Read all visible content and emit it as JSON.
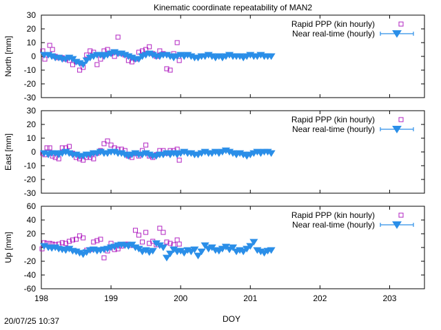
{
  "figure": {
    "title": "Kinematic coordinate repeatability of MAN2",
    "xlabel": "DOY",
    "timestamp": "20/07/25 10:37"
  },
  "colors": {
    "rapid_ppp": "#b020c0",
    "near_realtime": "#2a8ee8",
    "axis": "#000000"
  },
  "chart_data": [
    {
      "type": "scatter",
      "panel": "north",
      "ylabel": "North [mm]",
      "xlim": [
        198,
        203.5
      ],
      "ylim": [
        -30,
        30
      ],
      "xticks": [
        198,
        199,
        200,
        201,
        202,
        203
      ],
      "yticks": [
        -30,
        -20,
        -10,
        0,
        10,
        20,
        30
      ],
      "legend_position": "top-right",
      "series": [
        {
          "name": "Rapid PPP (kin hourly)",
          "marker": "open-square",
          "x": [
            198.02,
            198.05,
            198.08,
            198.12,
            198.16,
            198.2,
            198.25,
            198.3,
            198.35,
            198.4,
            198.45,
            198.5,
            198.55,
            198.6,
            198.65,
            198.7,
            198.75,
            198.8,
            198.85,
            198.9,
            198.95,
            199.0,
            199.05,
            199.1,
            199.15,
            199.2,
            199.25,
            199.3,
            199.35,
            199.4,
            199.45,
            199.5,
            199.55,
            199.6,
            199.65,
            199.7,
            199.75,
            199.8,
            199.85,
            199.9,
            199.95,
            199.98
          ],
          "y": [
            4,
            -2,
            1,
            8,
            5,
            0,
            -1,
            -1,
            -2,
            -3,
            -6,
            -4,
            -10,
            -8,
            1,
            4,
            3,
            -6,
            -2,
            4,
            5,
            2,
            0,
            14,
            2,
            1,
            -3,
            -4,
            -2,
            3,
            4,
            5,
            7,
            2,
            0,
            4,
            2,
            -9,
            -10,
            2,
            10,
            -3
          ]
        },
        {
          "name": "Near real-time (hourly)",
          "marker": "filled-triangle-down-errorbar",
          "x": [
            198.04,
            198.1,
            198.15,
            198.2,
            198.25,
            198.3,
            198.35,
            198.4,
            198.45,
            198.5,
            198.55,
            198.6,
            198.65,
            198.7,
            198.75,
            198.8,
            198.85,
            198.9,
            198.95,
            199.0,
            199.05,
            199.1,
            199.15,
            199.2,
            199.25,
            199.3,
            199.35,
            199.4,
            199.45,
            199.5,
            199.55,
            199.6,
            199.65,
            199.7,
            199.75,
            199.8,
            199.85,
            199.9,
            199.95,
            200.0,
            200.05,
            200.1,
            200.15,
            200.2,
            200.25,
            200.3,
            200.35,
            200.4,
            200.45,
            200.5,
            200.55,
            200.6,
            200.65,
            200.7,
            200.75,
            200.8,
            200.85,
            200.9,
            200.95,
            201.0,
            201.05,
            201.1,
            201.15,
            201.2,
            201.25,
            201.3
          ],
          "y": [
            1,
            1,
            0,
            -1,
            -1,
            -2,
            -2,
            -1,
            -2,
            -4,
            -5,
            -6,
            -3,
            -1,
            0,
            1,
            1,
            0,
            1,
            2,
            3,
            2,
            2,
            1,
            0,
            -1,
            -2,
            -2,
            0,
            1,
            2,
            1,
            0,
            0,
            1,
            1,
            0,
            -1,
            0,
            1,
            0,
            1,
            0,
            -1,
            -1,
            0,
            0,
            1,
            0,
            -1,
            0,
            -1,
            0,
            1,
            0,
            0,
            0,
            -1,
            0,
            1,
            0,
            0,
            1,
            0,
            0,
            0
          ]
        }
      ]
    },
    {
      "type": "scatter",
      "panel": "east",
      "ylabel": "East [mm]",
      "xlim": [
        198,
        203.5
      ],
      "ylim": [
        -30,
        30
      ],
      "xticks": [
        198,
        199,
        200,
        201,
        202,
        203
      ],
      "yticks": [
        -30,
        -20,
        -10,
        0,
        10,
        20,
        30
      ],
      "legend_position": "top-right",
      "series": [
        {
          "name": "Rapid PPP (kin hourly)",
          "marker": "open-square",
          "x": [
            198.02,
            198.05,
            198.08,
            198.12,
            198.16,
            198.2,
            198.25,
            198.3,
            198.35,
            198.4,
            198.45,
            198.5,
            198.55,
            198.6,
            198.65,
            198.7,
            198.75,
            198.8,
            198.85,
            198.9,
            198.95,
            199.0,
            199.05,
            199.1,
            199.15,
            199.2,
            199.25,
            199.3,
            199.35,
            199.4,
            199.45,
            199.5,
            199.55,
            199.6,
            199.65,
            199.7,
            199.75,
            199.8,
            199.85,
            199.9,
            199.95,
            199.98
          ],
          "y": [
            -1,
            -2,
            3,
            3,
            -3,
            -4,
            -5,
            3,
            3,
            4,
            -1,
            -4,
            -5,
            -6,
            -4,
            -4,
            -5,
            -1,
            1,
            6,
            8,
            5,
            3,
            2,
            2,
            1,
            -3,
            -4,
            -1,
            -3,
            1,
            5,
            -3,
            -4,
            -2,
            1,
            1,
            -1,
            1,
            1,
            2,
            -6
          ]
        },
        {
          "name": "Near real-time (hourly)",
          "marker": "filled-triangle-down-errorbar",
          "x": [
            198.04,
            198.1,
            198.15,
            198.2,
            198.25,
            198.3,
            198.35,
            198.4,
            198.45,
            198.5,
            198.55,
            198.6,
            198.65,
            198.7,
            198.75,
            198.8,
            198.85,
            198.9,
            198.95,
            199.0,
            199.05,
            199.1,
            199.15,
            199.2,
            199.25,
            199.3,
            199.35,
            199.4,
            199.45,
            199.5,
            199.55,
            199.6,
            199.65,
            199.7,
            199.75,
            199.8,
            199.85,
            199.9,
            199.95,
            200.0,
            200.05,
            200.1,
            200.15,
            200.2,
            200.25,
            200.3,
            200.35,
            200.4,
            200.45,
            200.5,
            200.55,
            200.6,
            200.65,
            200.7,
            200.75,
            200.8,
            200.85,
            200.9,
            200.95,
            201.0,
            201.05,
            201.1,
            201.15,
            201.2,
            201.25,
            201.3
          ],
          "y": [
            -1,
            -2,
            -1,
            -1,
            -2,
            -1,
            0,
            -1,
            -2,
            -2,
            -3,
            -3,
            -2,
            -2,
            -1,
            -1,
            0,
            -1,
            -1,
            0,
            0,
            -1,
            -1,
            -2,
            -3,
            -2,
            -1,
            -2,
            -2,
            -1,
            -2,
            -3,
            -3,
            -2,
            -2,
            -1,
            -2,
            -1,
            -2,
            -1,
            0,
            -1,
            -1,
            -2,
            -2,
            -1,
            0,
            -1,
            -1,
            0,
            -1,
            0,
            1,
            0,
            -1,
            -2,
            -1,
            -2,
            -3,
            -2,
            -1,
            0,
            -1,
            0,
            0,
            -1
          ]
        }
      ]
    },
    {
      "type": "scatter",
      "panel": "up",
      "ylabel": "Up [mm]",
      "xlim": [
        198,
        203.5
      ],
      "ylim": [
        -60,
        60
      ],
      "xticks": [
        198,
        199,
        200,
        201,
        202,
        203
      ],
      "yticks": [
        -60,
        -40,
        -20,
        0,
        20,
        40,
        60
      ],
      "legend_position": "top-right",
      "series": [
        {
          "name": "Rapid PPP (kin hourly)",
          "marker": "open-square",
          "x": [
            198.01,
            198.04,
            198.08,
            198.12,
            198.16,
            198.2,
            198.25,
            198.3,
            198.35,
            198.4,
            198.45,
            198.5,
            198.55,
            198.6,
            198.65,
            198.7,
            198.75,
            198.8,
            198.85,
            198.9,
            198.95,
            199.0,
            199.05,
            199.1,
            199.15,
            199.2,
            199.25,
            199.3,
            199.35,
            199.4,
            199.45,
            199.5,
            199.55,
            199.6,
            199.65,
            199.7,
            199.75,
            199.8,
            199.85,
            199.9,
            199.95,
            199.98
          ],
          "y": [
            -2,
            7,
            6,
            6,
            5,
            4,
            5,
            7,
            6,
            9,
            11,
            12,
            17,
            14,
            -4,
            -3,
            8,
            10,
            12,
            -15,
            -5,
            6,
            -3,
            -2,
            2,
            5,
            5,
            3,
            25,
            18,
            8,
            22,
            6,
            9,
            4,
            28,
            22,
            8,
            6,
            4,
            11,
            5
          ]
        },
        {
          "name": "Near real-time (hourly)",
          "marker": "filled-triangle-down-errorbar",
          "x": [
            198.04,
            198.1,
            198.15,
            198.2,
            198.25,
            198.3,
            198.35,
            198.4,
            198.45,
            198.5,
            198.55,
            198.6,
            198.65,
            198.7,
            198.75,
            198.8,
            198.85,
            198.9,
            198.95,
            199.0,
            199.05,
            199.1,
            199.15,
            199.2,
            199.25,
            199.3,
            199.35,
            199.4,
            199.45,
            199.5,
            199.55,
            199.6,
            199.65,
            199.7,
            199.75,
            199.8,
            199.85,
            199.9,
            199.95,
            200.0,
            200.05,
            200.1,
            200.15,
            200.2,
            200.25,
            200.3,
            200.35,
            200.4,
            200.45,
            200.5,
            200.55,
            200.6,
            200.65,
            200.7,
            200.75,
            200.8,
            200.85,
            200.9,
            200.95,
            201.0,
            201.05,
            201.1,
            201.15,
            201.2,
            201.25,
            201.3
          ],
          "y": [
            2,
            0,
            -1,
            0,
            -2,
            -3,
            -4,
            -2,
            -5,
            -6,
            -8,
            -10,
            -7,
            -4,
            -3,
            -5,
            -4,
            -3,
            -2,
            0,
            1,
            3,
            4,
            3,
            2,
            4,
            0,
            -2,
            -6,
            -4,
            -7,
            -5,
            6,
            3,
            0,
            -15,
            -9,
            -3,
            -6,
            -5,
            -8,
            -4,
            -6,
            -3,
            -12,
            -6,
            3,
            -2,
            0,
            -4,
            -5,
            -2,
            1,
            -3,
            0,
            -6,
            -4,
            -6,
            -2,
            2,
            8,
            -4,
            -6,
            -8,
            -5,
            -4
          ]
        }
      ]
    }
  ]
}
